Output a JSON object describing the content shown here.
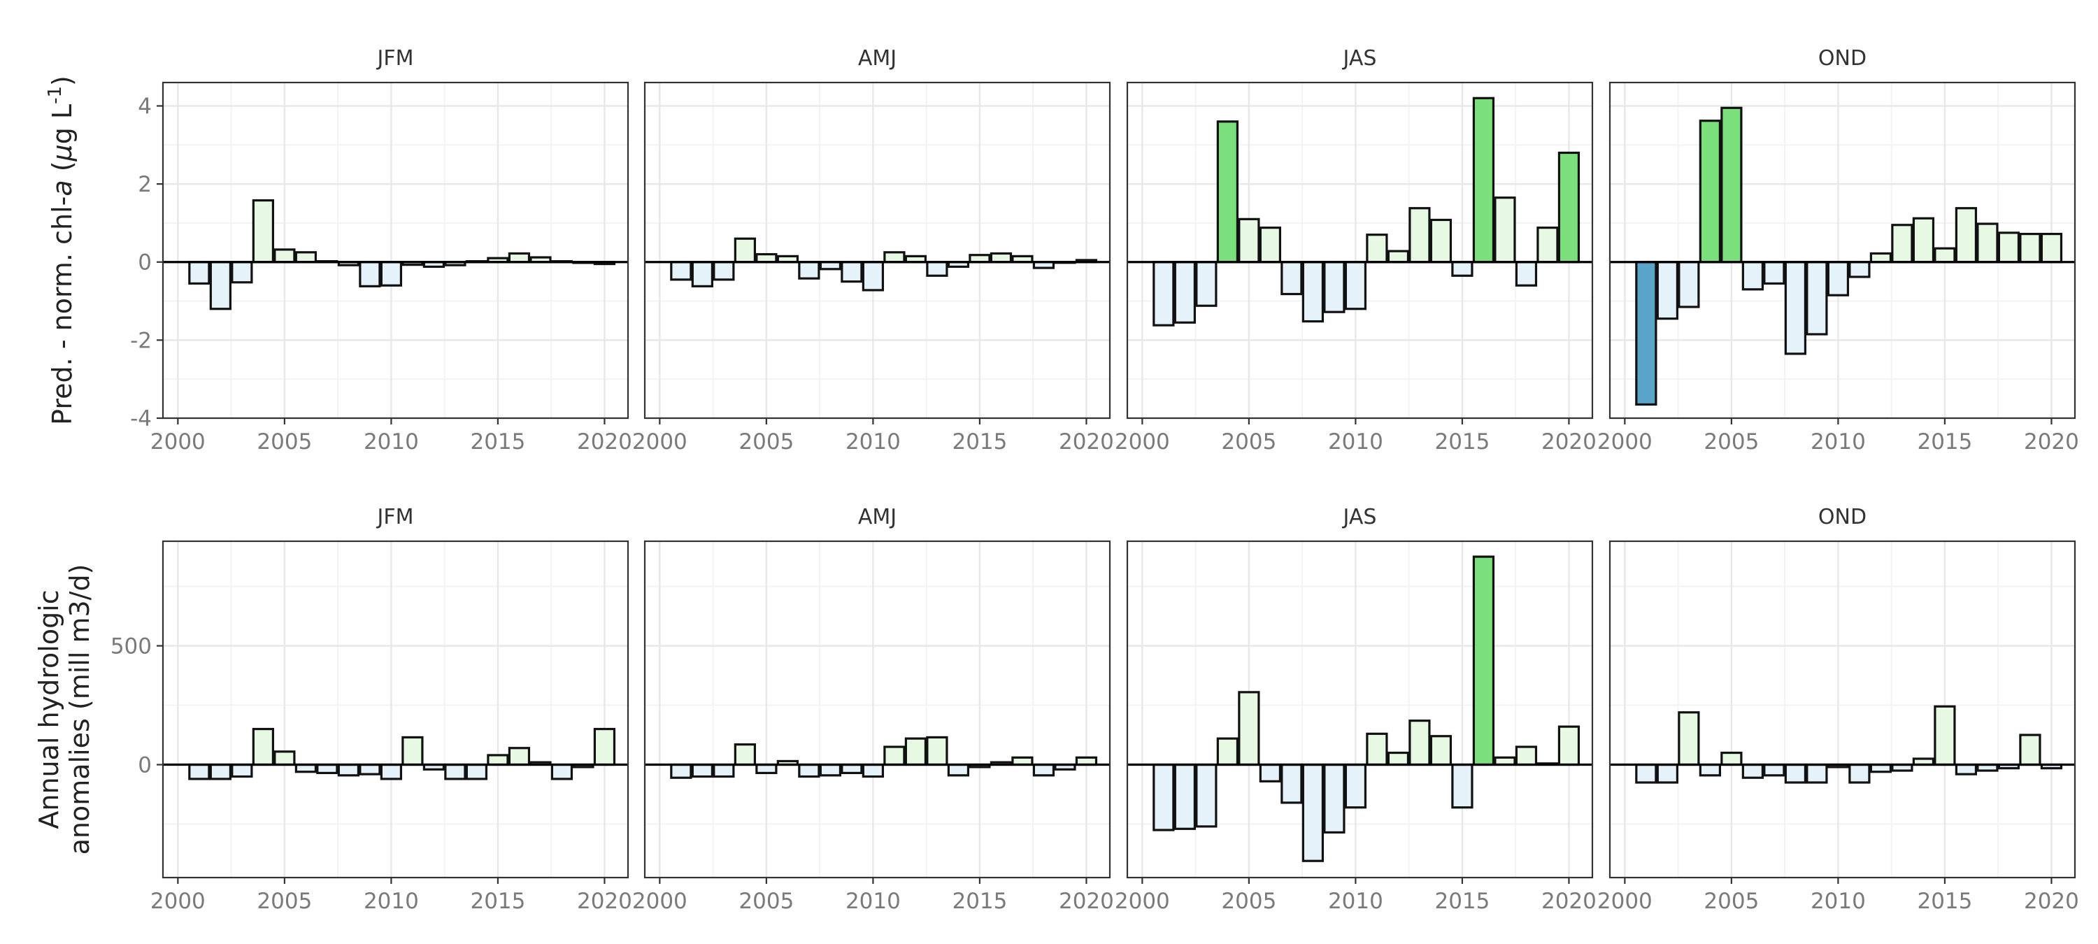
{
  "chart_data": [
    {
      "type": "bar",
      "row": 0,
      "ylabel_parts": [
        "Pred. - norm. chl-",
        "a",
        " (",
        "μ",
        "g L",
        "-1",
        ")"
      ],
      "ylim": [
        -4,
        4.6
      ],
      "yticks": [
        -4,
        -2,
        0,
        2,
        4
      ],
      "ytick_labels": [
        "-4",
        "-2",
        "0",
        "2",
        "4"
      ],
      "xlim": [
        1999.3,
        2021.1
      ],
      "xticks": [
        2000,
        2005,
        2010,
        2015,
        2020
      ],
      "xtick_labels": [
        "2000",
        "2005",
        "2010",
        "2015",
        "2020"
      ],
      "grid": true,
      "years": [
        2001,
        2002,
        2003,
        2004,
        2005,
        2006,
        2007,
        2008,
        2009,
        2010,
        2011,
        2012,
        2013,
        2014,
        2015,
        2016,
        2017,
        2018,
        2019,
        2020
      ],
      "panels": [
        {
          "title": "JFM",
          "values": [
            -0.55,
            -1.2,
            -0.52,
            1.58,
            0.32,
            0.25,
            0.02,
            -0.08,
            -0.62,
            -0.6,
            -0.07,
            -0.12,
            -0.08,
            0.02,
            0.1,
            0.22,
            0.12,
            0.02,
            -0.02,
            -0.05
          ]
        },
        {
          "title": "AMJ",
          "values": [
            -0.45,
            -0.62,
            -0.45,
            0.6,
            0.2,
            0.15,
            -0.42,
            -0.18,
            -0.5,
            -0.72,
            0.25,
            0.15,
            -0.35,
            -0.12,
            0.18,
            0.22,
            0.15,
            -0.15,
            0.0,
            0.05
          ]
        },
        {
          "title": "JAS",
          "values": [
            -1.62,
            -1.55,
            -1.12,
            3.6,
            1.1,
            0.88,
            -0.82,
            -1.52,
            -1.28,
            -1.2,
            0.7,
            0.28,
            1.38,
            1.08,
            -0.35,
            4.2,
            1.65,
            -0.6,
            0.88,
            2.8
          ]
        },
        {
          "title": "OND",
          "values": [
            -3.65,
            -1.45,
            -1.15,
            3.62,
            3.95,
            -0.7,
            -0.55,
            -2.35,
            -1.85,
            -0.85,
            -0.38,
            0.22,
            0.95,
            1.12,
            0.35,
            1.38,
            0.98,
            0.75,
            0.72,
            0.72
          ]
        }
      ]
    },
    {
      "type": "bar",
      "row": 1,
      "ylabel_lines": [
        "Annual hydrologic",
        "anomalies (mill m3/d)"
      ],
      "ylim": [
        -475,
        940
      ],
      "yticks": [
        0,
        500
      ],
      "ytick_labels": [
        "0",
        "500"
      ],
      "minor_gridlines": [
        -250,
        250,
        750
      ],
      "xlim": [
        1999.3,
        2021.1
      ],
      "xticks": [
        2000,
        2005,
        2010,
        2015,
        2020
      ],
      "xtick_labels": [
        "2000",
        "2005",
        "2010",
        "2015",
        "2020"
      ],
      "grid": true,
      "years": [
        2001,
        2002,
        2003,
        2004,
        2005,
        2006,
        2007,
        2008,
        2009,
        2010,
        2011,
        2012,
        2013,
        2014,
        2015,
        2016,
        2017,
        2018,
        2019,
        2020
      ],
      "panels": [
        {
          "title": "JFM",
          "values": [
            -60,
            -60,
            -50,
            150,
            55,
            -30,
            -35,
            -45,
            -40,
            -60,
            115,
            -20,
            -60,
            -60,
            40,
            70,
            10,
            -60,
            -10,
            150
          ]
        },
        {
          "title": "AMJ",
          "values": [
            -55,
            -50,
            -50,
            85,
            -35,
            15,
            -50,
            -45,
            -35,
            -50,
            75,
            110,
            115,
            -45,
            -10,
            10,
            30,
            -45,
            -20,
            30
          ]
        },
        {
          "title": "JAS",
          "values": [
            -275,
            -270,
            -260,
            110,
            305,
            -70,
            -160,
            -405,
            -285,
            -180,
            130,
            50,
            185,
            120,
            -180,
            875,
            30,
            75,
            5,
            160
          ]
        },
        {
          "title": "OND",
          "values": [
            -75,
            -75,
            220,
            -45,
            50,
            -55,
            -45,
            -75,
            -75,
            -10,
            -75,
            -30,
            -25,
            25,
            245,
            -40,
            -25,
            -15,
            125,
            -15
          ]
        }
      ]
    }
  ],
  "colors": {
    "neg_strong": "#5aa3c9",
    "neg_light": "#e6f2f9",
    "pos_light": "#e8f9e3",
    "pos_strong": "#7be07b",
    "bar_outline": "#111111",
    "strip_text": "#333333",
    "tick_text": "#7a7a7a",
    "grid_major": "#e8e8e8",
    "grid_minor": "#f3f3f3",
    "panel_border": "#333333"
  }
}
